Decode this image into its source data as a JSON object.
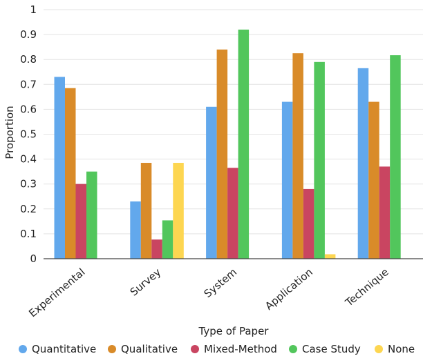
{
  "chart_data": {
    "type": "bar",
    "xlabel": "Type of Paper",
    "ylabel": "Proportion",
    "ylim": [
      0,
      1
    ],
    "yticks": [
      "0",
      "0.1",
      "0.2",
      "0.3",
      "0.4",
      "0.5",
      "0.6",
      "0.7",
      "0.8",
      "0.9",
      "1"
    ],
    "grid": true,
    "legend_position": "bottom",
    "categories": [
      "Experimental",
      "Survey",
      "System",
      "Application",
      "Technique"
    ],
    "series": [
      {
        "name": "Quantitative",
        "color": "#62a8ec",
        "values": [
          0.73,
          0.23,
          0.61,
          0.63,
          0.765
        ]
      },
      {
        "name": "Qualitative",
        "color": "#d98b29",
        "values": [
          0.685,
          0.385,
          0.84,
          0.825,
          0.63
        ]
      },
      {
        "name": "Mixed-Method",
        "color": "#c94561",
        "values": [
          0.3,
          0.077,
          0.365,
          0.28,
          0.37
        ]
      },
      {
        "name": "Case Study",
        "color": "#52c65c",
        "values": [
          0.35,
          0.154,
          0.92,
          0.79,
          0.817
        ]
      },
      {
        "name": "None",
        "color": "#fdd651",
        "values": [
          0,
          0.385,
          0,
          0.018,
          0
        ]
      }
    ]
  }
}
